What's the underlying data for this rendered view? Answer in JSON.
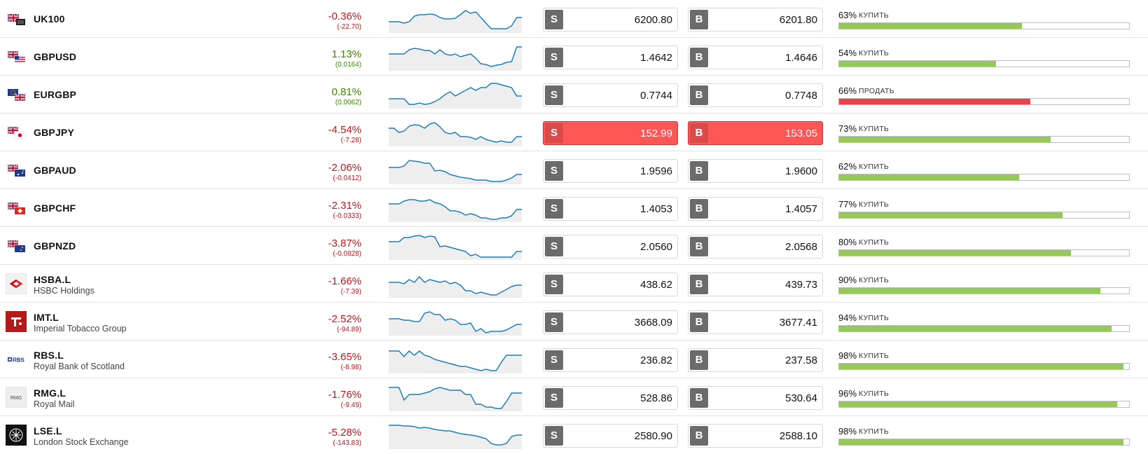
{
  "colors": {
    "negative": "#c4161c",
    "positive": "#3a8a00",
    "buy_bar": "#96c858",
    "sell_bar": "#e8434a",
    "spark_line": "#1f7fb8",
    "spark_fill": "#eeeeee",
    "highlight": "#ff5656"
  },
  "buttons": {
    "sell_letter": "S",
    "buy_letter": "B"
  },
  "rows": [
    {
      "symbol": "UK100",
      "name": "",
      "logo": "uk-flag-icon",
      "change_pct": "-0.36%",
      "change_abs": "(-22.70)",
      "direction": "down",
      "sell": "6200.80",
      "buy": "6201.80",
      "sentiment_pct": "63%",
      "sentiment_label": "КУПИТЬ",
      "sentiment_fraction": 0.63,
      "sentiment_side": "buy",
      "highlight": false,
      "spark": [
        12,
        12,
        12,
        10,
        12,
        20,
        22,
        22,
        23,
        22,
        18,
        16,
        16,
        17,
        22,
        28,
        24,
        26,
        18,
        10,
        2,
        2,
        2,
        2,
        6,
        18,
        18
      ]
    },
    {
      "symbol": "GBPUSD",
      "name": "",
      "logo": "gbp-usd-flags-icon",
      "change_pct": "1.13%",
      "change_abs": "(0.0164)",
      "direction": "up",
      "sell": "1.4642",
      "buy": "1.4646",
      "sentiment_pct": "54%",
      "sentiment_label": "КУПИТЬ",
      "sentiment_fraction": 0.54,
      "sentiment_side": "buy",
      "highlight": false,
      "spark": [
        20,
        20,
        20,
        20,
        26,
        28,
        27,
        25,
        25,
        20,
        26,
        20,
        18,
        20,
        16,
        18,
        20,
        14,
        6,
        5,
        2,
        4,
        5,
        8,
        9,
        30,
        30
      ]
    },
    {
      "symbol": "EURGBP",
      "name": "",
      "logo": "eu-uk-flags-icon",
      "change_pct": "0.81%",
      "change_abs": "(0.0062)",
      "direction": "up",
      "sell": "0.7744",
      "buy": "0.7748",
      "sentiment_pct": "66%",
      "sentiment_label": "ПРОДАТЬ",
      "sentiment_fraction": 0.66,
      "sentiment_side": "sell",
      "highlight": false,
      "spark": [
        10,
        10,
        10,
        10,
        2,
        2,
        4,
        2,
        3,
        6,
        10,
        16,
        20,
        14,
        18,
        22,
        26,
        22,
        26,
        26,
        32,
        32,
        30,
        28,
        26,
        14,
        14
      ]
    },
    {
      "symbol": "GBPJPY",
      "name": "",
      "logo": "uk-jp-flags-icon",
      "change_pct": "-4.54%",
      "change_abs": "(-7.28)",
      "direction": "down",
      "sell": "152.99",
      "buy": "153.05",
      "sentiment_pct": "73%",
      "sentiment_label": "КУПИТЬ",
      "sentiment_fraction": 0.73,
      "sentiment_side": "buy",
      "highlight": true,
      "spark": [
        22,
        22,
        16,
        18,
        25,
        27,
        26,
        22,
        28,
        30,
        24,
        16,
        14,
        16,
        10,
        10,
        9,
        6,
        10,
        6,
        4,
        2,
        4,
        2,
        2,
        10,
        10
      ]
    },
    {
      "symbol": "GBPAUD",
      "name": "",
      "logo": "uk-au-flags-icon",
      "change_pct": "-2.06%",
      "change_abs": "(-0.0412)",
      "direction": "down",
      "sell": "1.9596",
      "buy": "1.9600",
      "sentiment_pct": "62%",
      "sentiment_label": "КУПИТЬ",
      "sentiment_fraction": 0.62,
      "sentiment_side": "buy",
      "highlight": false,
      "spark": [
        20,
        20,
        20,
        22,
        30,
        29,
        28,
        26,
        26,
        15,
        16,
        14,
        10,
        8,
        6,
        5,
        4,
        2,
        2,
        2,
        0,
        0,
        0,
        2,
        5,
        10,
        10
      ]
    },
    {
      "symbol": "GBPCHF",
      "name": "",
      "logo": "uk-ch-flags-icon",
      "change_pct": "-2.31%",
      "change_abs": "(-0.0333)",
      "direction": "down",
      "sell": "1.4053",
      "buy": "1.4057",
      "sentiment_pct": "77%",
      "sentiment_label": "КУПИТЬ",
      "sentiment_fraction": 0.77,
      "sentiment_side": "buy",
      "highlight": false,
      "spark": [
        22,
        22,
        22,
        26,
        28,
        28,
        26,
        26,
        28,
        24,
        22,
        18,
        12,
        12,
        10,
        6,
        8,
        6,
        2,
        2,
        0,
        0,
        2,
        2,
        5,
        14,
        14
      ]
    },
    {
      "symbol": "GBPNZD",
      "name": "",
      "logo": "uk-nz-flags-icon",
      "change_pct": "-3.87%",
      "change_abs": "(-0.0828)",
      "direction": "down",
      "sell": "2.0560",
      "buy": "2.0568",
      "sentiment_pct": "80%",
      "sentiment_label": "КУПИТЬ",
      "sentiment_fraction": 0.8,
      "sentiment_side": "buy",
      "highlight": false,
      "spark": [
        22,
        22,
        22,
        28,
        28,
        30,
        31,
        28,
        30,
        29,
        15,
        16,
        14,
        12,
        10,
        8,
        2,
        4,
        0,
        0,
        0,
        0,
        0,
        0,
        0,
        8,
        8
      ]
    },
    {
      "symbol": "HSBA.L",
      "name": "HSBC Holdings",
      "logo": "hsbc-logo-icon",
      "change_pct": "-1.66%",
      "change_abs": "(-7.39)",
      "direction": "down",
      "sell": "438.62",
      "buy": "439.73",
      "sentiment_pct": "90%",
      "sentiment_label": "КУПИТЬ",
      "sentiment_fraction": 0.9,
      "sentiment_side": "buy",
      "highlight": false,
      "spark": [
        18,
        18,
        18,
        16,
        22,
        18,
        26,
        18,
        22,
        20,
        18,
        20,
        16,
        18,
        14,
        6,
        6,
        2,
        4,
        2,
        0,
        0,
        4,
        8,
        12,
        14,
        14
      ]
    },
    {
      "symbol": "IMT.L",
      "name": "Imperial Tobacco Group",
      "logo": "imperial-tobacco-logo-icon",
      "change_pct": "-2.52%",
      "change_abs": "(-94.89)",
      "direction": "down",
      "sell": "3668.09",
      "buy": "3677.41",
      "sentiment_pct": "94%",
      "sentiment_label": "КУПИТЬ",
      "sentiment_fraction": 0.94,
      "sentiment_side": "buy",
      "highlight": false,
      "spark": [
        20,
        20,
        20,
        18,
        18,
        16,
        16,
        28,
        30,
        26,
        26,
        18,
        20,
        18,
        12,
        12,
        14,
        2,
        6,
        0,
        2,
        2,
        2,
        4,
        8,
        12,
        12
      ]
    },
    {
      "symbol": "RBS.L",
      "name": "Royal Bank of Scotland",
      "logo": "rbs-logo-icon",
      "change_pct": "-3.65%",
      "change_abs": "(-8.98)",
      "direction": "down",
      "sell": "236.82",
      "buy": "237.58",
      "sentiment_pct": "98%",
      "sentiment_label": "КУПИТЬ",
      "sentiment_fraction": 0.98,
      "sentiment_side": "buy",
      "highlight": false,
      "spark": [
        28,
        28,
        28,
        20,
        28,
        22,
        28,
        22,
        20,
        16,
        14,
        12,
        10,
        8,
        6,
        6,
        4,
        2,
        0,
        2,
        0,
        0,
        12,
        22,
        22,
        22,
        22
      ]
    },
    {
      "symbol": "RMG.L",
      "name": "Royal Mail",
      "logo": "royal-mail-logo-icon",
      "change_pct": "-1.76%",
      "change_abs": "(-9.49)",
      "direction": "down",
      "sell": "528.86",
      "buy": "530.64",
      "sentiment_pct": "96%",
      "sentiment_label": "КУПИТЬ",
      "sentiment_fraction": 0.96,
      "sentiment_side": "buy",
      "highlight": false,
      "spark": [
        30,
        30,
        30,
        12,
        20,
        20,
        20,
        22,
        24,
        28,
        30,
        28,
        26,
        26,
        26,
        20,
        20,
        6,
        6,
        2,
        2,
        0,
        0,
        10,
        22,
        22,
        22
      ]
    },
    {
      "symbol": "LSE.L",
      "name": "London Stock Exchange",
      "logo": "lse-logo-icon",
      "change_pct": "-5.28%",
      "change_abs": "(-143.83)",
      "direction": "down",
      "sell": "2580.90",
      "buy": "2588.10",
      "sentiment_pct": "98%",
      "sentiment_label": "КУПИТЬ",
      "sentiment_fraction": 0.98,
      "sentiment_side": "buy",
      "highlight": false,
      "spark": [
        30,
        30,
        30,
        29,
        29,
        28,
        26,
        27,
        26,
        24,
        23,
        22,
        22,
        20,
        18,
        17,
        16,
        15,
        13,
        11,
        4,
        2,
        2,
        4,
        14,
        16,
        16
      ]
    }
  ]
}
